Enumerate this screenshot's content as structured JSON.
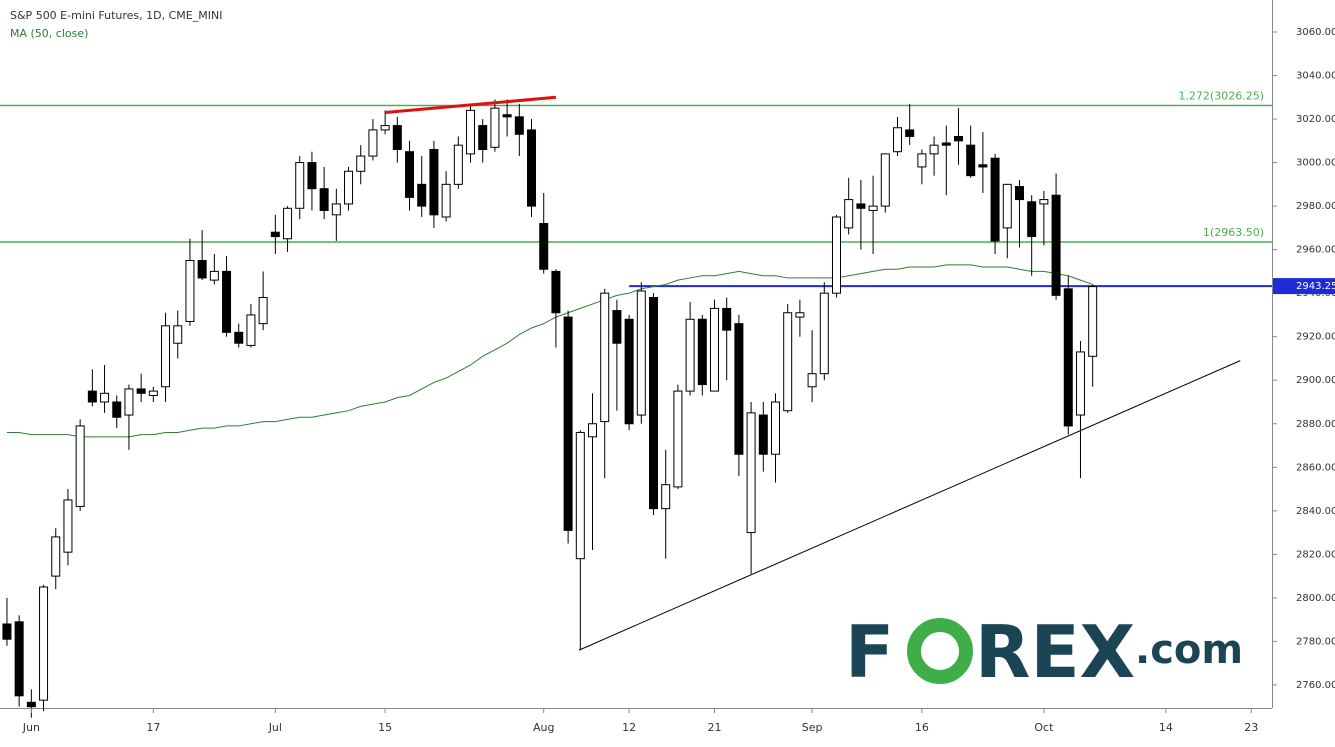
{
  "chart_data": {
    "type": "candlestick",
    "title": "S&P 500 E-mini Futures, 1D, CME_MINI",
    "x": [
      0,
      1,
      2,
      3,
      4,
      5,
      6,
      7,
      8,
      9,
      10,
      11,
      12,
      13,
      14,
      15,
      16,
      17,
      18,
      19,
      20,
      21,
      22,
      23,
      24,
      25,
      26,
      27,
      28,
      29,
      30,
      31,
      32,
      33,
      34,
      35,
      36,
      37,
      38,
      39,
      40,
      41,
      42,
      43,
      44,
      45,
      46,
      47,
      48,
      49,
      50,
      51,
      52,
      53,
      54,
      55,
      56,
      57,
      58,
      59,
      60,
      61,
      62,
      63,
      64,
      65,
      66,
      67,
      68,
      69,
      70,
      71,
      72,
      73,
      74,
      75,
      76,
      77,
      78,
      79,
      80,
      81,
      82,
      83,
      84,
      85,
      86,
      87,
      88,
      89
    ],
    "open": [
      2788,
      2789,
      2752,
      2753,
      2810,
      2821,
      2842,
      2895,
      2890,
      2890,
      2884,
      2896,
      2893,
      2897,
      2917,
      2927,
      2955,
      2946,
      2950,
      2922,
      2916,
      2926,
      2968,
      2965,
      2979,
      3000,
      2988,
      2976,
      2981,
      2996,
      3003,
      3015,
      3017,
      3005,
      2990,
      3006,
      2975,
      2990,
      3004,
      3017,
      3007,
      3022,
      3021,
      3015,
      2972,
      2950,
      2929,
      2818,
      2874,
      2881,
      2932,
      2928,
      2884,
      2938,
      2841,
      2851,
      2895,
      2928,
      2895,
      2933,
      2926,
      2830,
      2884,
      2866,
      2886,
      2929,
      2897,
      2903,
      2940,
      2970,
      2981,
      2978,
      2980,
      3005,
      3015,
      2998,
      3004,
      3009,
      3012,
      3008,
      2999,
      3002,
      2970,
      2989,
      2982,
      2981,
      2985,
      2942,
      2884,
      2911
    ],
    "high": [
      2800,
      2792,
      2758,
      2806,
      2832,
      2850,
      2882,
      2905,
      2907,
      2893,
      2898,
      2903,
      2897,
      2931,
      2932,
      2965,
      2969,
      2958,
      2957,
      2926,
      2935,
      2950,
      2976,
      2980,
      3003,
      3005,
      2998,
      2988,
      2998,
      3008,
      3020,
      3024,
      3021,
      3010,
      3003,
      3010,
      2996,
      3012,
      3026,
      3020,
      3029,
      3029,
      3027,
      3020,
      2986,
      2951,
      2932,
      2877,
      2894,
      2942,
      2937,
      2930,
      2945,
      2940,
      2868,
      2898,
      2936,
      2930,
      2937,
      2938,
      2930,
      2890,
      2890,
      2894,
      2935,
      2937,
      2923,
      2945,
      2976,
      2993,
      2992,
      2994,
      3004,
      3021,
      3027,
      3006,
      3012,
      3017,
      3025,
      3017,
      3014,
      3004,
      2990,
      2992,
      2985,
      2987,
      2995,
      2948,
      2918,
      2944
    ],
    "low": [
      2778,
      2750,
      2745,
      2748,
      2804,
      2815,
      2840,
      2888,
      2885,
      2878,
      2868,
      2890,
      2890,
      2890,
      2910,
      2925,
      2946,
      2944,
      2920,
      2915,
      2915,
      2923,
      2958,
      2959,
      2974,
      2978,
      2974,
      2964,
      2978,
      2990,
      3001,
      3013,
      3000,
      2978,
      2975,
      2970,
      2973,
      2988,
      3000,
      3000,
      3005,
      3012,
      3003,
      2975,
      2949,
      2915,
      2825,
      2776,
      2822,
      2855,
      2886,
      2877,
      2880,
      2838,
      2818,
      2850,
      2893,
      2893,
      2895,
      2900,
      2856,
      2811,
      2858,
      2853,
      2885,
      2920,
      2890,
      2900,
      2938,
      2967,
      2960,
      2958,
      2977,
      3003,
      3008,
      2990,
      2994,
      2985,
      2999,
      2993,
      2986,
      2958,
      2956,
      2961,
      2948,
      2962,
      2937,
      2875,
      2855,
      2897
    ],
    "close": [
      2781,
      2755,
      2750,
      2805,
      2828,
      2845,
      2879,
      2890,
      2894,
      2883,
      2896,
      2894,
      2895,
      2925,
      2925,
      2955,
      2947,
      2950,
      2922,
      2917,
      2930,
      2938,
      2966,
      2979,
      3000,
      2988,
      2978,
      2981,
      2996,
      3003,
      3015,
      3017,
      3006,
      2984,
      2980,
      2976,
      2990,
      3008,
      3024,
      3006,
      3025,
      3021,
      3013,
      2980,
      2951,
      2931,
      2831,
      2876,
      2880,
      2940,
      2917,
      2880,
      2941,
      2841,
      2852,
      2895,
      2928,
      2898,
      2933,
      2923,
      2866,
      2885,
      2866,
      2890,
      2931,
      2931,
      2903,
      2940,
      2975,
      2983,
      2979,
      2980,
      3004,
      3016,
      3012,
      3004,
      3008,
      3008,
      3010,
      2994,
      2998,
      2964,
      2990,
      2983,
      2966,
      2983,
      2939,
      2879,
      2913,
      2943
    ],
    "up_color": "#ffffff",
    "down_color": "#000000",
    "ma": {
      "name": "MA (50, close)",
      "color": "#2e7d32",
      "values": [
        2876,
        2876,
        2875,
        2875,
        2875,
        2875,
        2874,
        2874,
        2874,
        2874,
        2874,
        2875,
        2875,
        2876,
        2876,
        2877,
        2878,
        2878,
        2879,
        2879,
        2880,
        2881,
        2881,
        2882,
        2883,
        2883,
        2884,
        2885,
        2886,
        2888,
        2889,
        2890,
        2892,
        2893,
        2896,
        2899,
        2901,
        2904,
        2907,
        2911,
        2914,
        2917,
        2921,
        2924,
        2926,
        2929,
        2931,
        2933,
        2935,
        2937,
        2939,
        2940,
        2942,
        2943,
        2944,
        2946,
        2947,
        2948,
        2948,
        2949,
        2950,
        2949,
        2948,
        2948,
        2947,
        2947,
        2947,
        2947,
        2947,
        2948,
        2949,
        2950,
        2951,
        2951,
        2952,
        2952,
        2952,
        2953,
        2953,
        2953,
        2952,
        2952,
        2952,
        2951,
        2950,
        2950,
        2949,
        2948,
        2946,
        2944
      ]
    },
    "levels": [
      {
        "value": 3026.25,
        "label": "1.272(3026.25)",
        "color": "#4caf50"
      },
      {
        "value": 2963.5,
        "label": "1(2963.50)",
        "color": "#4caf50"
      }
    ],
    "price_line": {
      "value": 2943.25,
      "label": "2943.25",
      "color": "#1e2bd6",
      "start": 51
    },
    "trendlines": [
      {
        "color": "#e01010",
        "points": [
          [
            31,
            3023
          ],
          [
            45,
            3030
          ]
        ]
      },
      {
        "color": "#000000",
        "points": [
          [
            46.9,
            2776
          ],
          [
            101.1,
            2909
          ]
        ]
      }
    ],
    "xlim": [
      -0.57,
      103.7
    ],
    "ylim": [
      2749.4,
      3074.7
    ],
    "xticks": [
      {
        "value": 2,
        "label": "Jun"
      },
      {
        "value": 12,
        "label": "17"
      },
      {
        "value": 22,
        "label": "Jul"
      },
      {
        "value": 31,
        "label": "15"
      },
      {
        "value": 44,
        "label": "Aug"
      },
      {
        "value": 51,
        "label": "12"
      },
      {
        "value": 58,
        "label": "21"
      },
      {
        "value": 66,
        "label": "Sep"
      },
      {
        "value": 75,
        "label": "16"
      },
      {
        "value": 85,
        "label": "Oct"
      },
      {
        "value": 95,
        "label": "14"
      },
      {
        "value": 102,
        "label": "23"
      }
    ],
    "yticks": [
      {
        "value": 2760,
        "label": "2760.00"
      },
      {
        "value": 2780,
        "label": "2780.00"
      },
      {
        "value": 2800,
        "label": "2800.00"
      },
      {
        "value": 2820,
        "label": "2820.00"
      },
      {
        "value": 2840,
        "label": "2840.00"
      },
      {
        "value": 2860,
        "label": "2860.00"
      },
      {
        "value": 2880,
        "label": "2880.00"
      },
      {
        "value": 2900,
        "label": "2900.00"
      },
      {
        "value": 2920,
        "label": "2920.00"
      },
      {
        "value": 2940,
        "label": "2940.00"
      },
      {
        "value": 2960,
        "label": "2960.00"
      },
      {
        "value": 2980,
        "label": "2980.00"
      },
      {
        "value": 3000,
        "label": "3000.00"
      },
      {
        "value": 3020,
        "label": "3020.00"
      },
      {
        "value": 3040,
        "label": "3040.00"
      },
      {
        "value": 3060,
        "label": "3060.00"
      }
    ],
    "logo": {
      "parts": [
        "F",
        "O",
        "REX",
        ".com"
      ]
    }
  }
}
